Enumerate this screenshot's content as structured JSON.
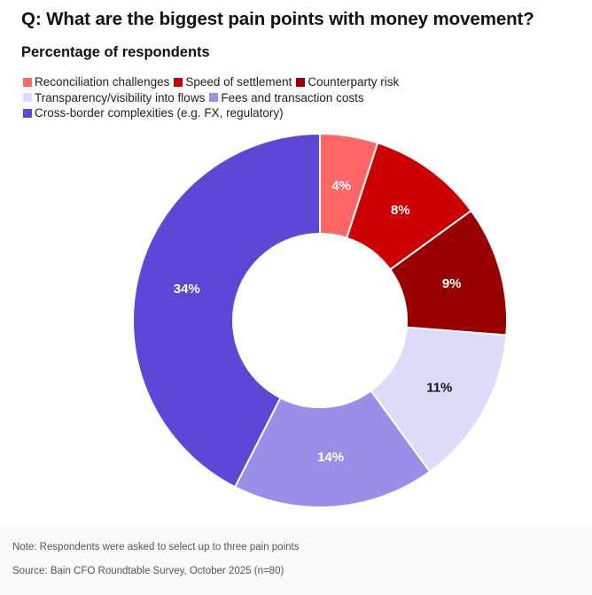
{
  "header": {
    "title": "Q: What are the biggest pain points with money movement?",
    "subtitle": "Percentage of respondents"
  },
  "legend": {
    "rows": [
      [
        {
          "label": "Reconciliation challenges",
          "color": "#ff6666"
        },
        {
          "label": "Speed of settlement",
          "color": "#cc0000"
        },
        {
          "label": "Counterparty risk",
          "color": "#990000"
        }
      ],
      [
        {
          "label": "Transparency/visibility into flows",
          "color": "#dcdcfa"
        },
        {
          "label": "Fees and transaction costs",
          "color": "#9a8fe8"
        }
      ],
      [
        {
          "label": "Cross-border complexities (e.g. FX, regulatory)",
          "color": "#5c47d6"
        }
      ]
    ]
  },
  "chart_data": {
    "type": "pie",
    "donut": true,
    "title": "Percentage of respondents",
    "series": [
      {
        "label": "Reconciliation challenges",
        "value": 4,
        "display": "4%",
        "color": "#ff6666",
        "text_color": "#ffffff"
      },
      {
        "label": "Speed of settlement",
        "value": 8,
        "display": "8%",
        "color": "#cc0000",
        "text_color": "#ffffff"
      },
      {
        "label": "Counterparty risk",
        "value": 9,
        "display": "9%",
        "color": "#990000",
        "text_color": "#ffffff"
      },
      {
        "label": "Transparency/visibility into flows",
        "value": 11,
        "display": "11%",
        "color": "#dcdcfa",
        "text_color": "#111111"
      },
      {
        "label": "Fees and transaction costs",
        "value": 14,
        "display": "14%",
        "color": "#9a8fe8",
        "text_color": "#ffffff"
      },
      {
        "label": "Cross-border complexities (e.g. FX, regulatory)",
        "value": 34,
        "display": "34%",
        "color": "#5c47d6",
        "text_color": "#ffffff"
      }
    ]
  },
  "footer": {
    "note": "Note: Respondents were asked to select up to three pain points",
    "source": "Source: Bain CFO Roundtable Survey, October 2025 (n=80)"
  }
}
